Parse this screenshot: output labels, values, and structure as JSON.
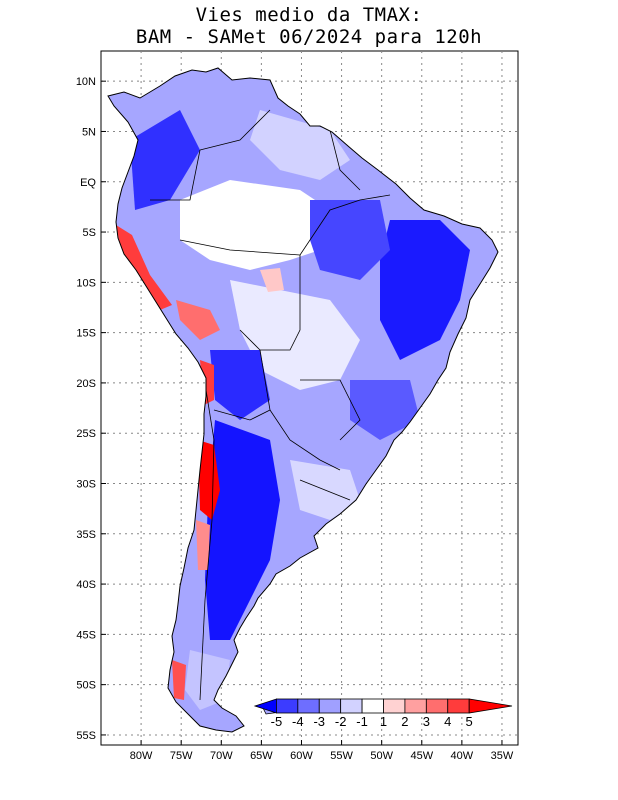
{
  "title": {
    "line1": "Vies medio da TMAX:",
    "line2": "BAM - SAMet 06/2024  para 120h"
  },
  "map": {
    "region": "South America",
    "lat_range": [
      -56,
      13
    ],
    "lon_range": [
      -85,
      -33
    ],
    "lat_ticks": [
      {
        "value": 10,
        "label": "10N"
      },
      {
        "value": 5,
        "label": "5N"
      },
      {
        "value": 0,
        "label": "EQ"
      },
      {
        "value": -5,
        "label": "5S"
      },
      {
        "value": -10,
        "label": "10S"
      },
      {
        "value": -15,
        "label": "15S"
      },
      {
        "value": -20,
        "label": "20S"
      },
      {
        "value": -25,
        "label": "25S"
      },
      {
        "value": -30,
        "label": "30S"
      },
      {
        "value": -35,
        "label": "35S"
      },
      {
        "value": -40,
        "label": "40S"
      },
      {
        "value": -45,
        "label": "45S"
      },
      {
        "value": -50,
        "label": "50S"
      },
      {
        "value": -55,
        "label": "55S"
      }
    ],
    "lon_ticks": [
      {
        "value": -80,
        "label": "80W"
      },
      {
        "value": -75,
        "label": "75W"
      },
      {
        "value": -70,
        "label": "70W"
      },
      {
        "value": -65,
        "label": "65W"
      },
      {
        "value": -60,
        "label": "60W"
      },
      {
        "value": -55,
        "label": "55W"
      },
      {
        "value": -50,
        "label": "50W"
      },
      {
        "value": -45,
        "label": "45W"
      },
      {
        "value": -40,
        "label": "40W"
      },
      {
        "value": -35,
        "label": "35W"
      }
    ]
  },
  "colorbar": {
    "labels": [
      "-5",
      "-4",
      "-3",
      "-2",
      "-1",
      "1",
      "2",
      "3",
      "4",
      "5"
    ],
    "colors": [
      "#0000ff",
      "#3c3cff",
      "#6e6eff",
      "#a0a0ff",
      "#d2d2ff",
      "#ffffff",
      "#ffd2d2",
      "#ffa0a0",
      "#ff6e6e",
      "#ff3c3c",
      "#ff0000"
    ]
  },
  "colors": {
    "strong_cold": "#0000ff",
    "cold": "#5a5aff",
    "mild_cold": "#9a9aff",
    "slight_cold": "#d2d2ff",
    "neutral": "#ffffff",
    "warm": "#ff6e6e",
    "hot": "#ff0000",
    "grid": "#888888"
  }
}
